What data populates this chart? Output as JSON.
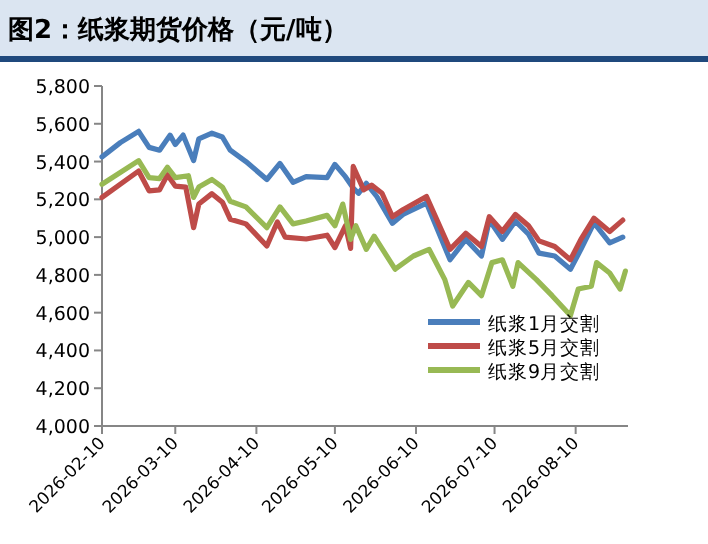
{
  "chart_data": {
    "type": "line",
    "title": "图2：纸浆期货价格（元/吨）",
    "xlim": [
      "2026-02-10",
      "2026-08-30"
    ],
    "xticks": [
      "2026-02-10",
      "2026-03-10",
      "2026-04-10",
      "2026-05-10",
      "2026-06-10",
      "2026-07-10",
      "2026-08-10"
    ],
    "ylim": [
      4000,
      5800
    ],
    "yticks": [
      {
        "value": 4000,
        "label": "4,000"
      },
      {
        "value": 4200,
        "label": "4,200"
      },
      {
        "value": 4400,
        "label": "4,400"
      },
      {
        "value": 4600,
        "label": "4,600"
      },
      {
        "value": 4800,
        "label": "4,800"
      },
      {
        "value": 5000,
        "label": "5,000"
      },
      {
        "value": 5200,
        "label": "5,200"
      },
      {
        "value": 5400,
        "label": "5,400"
      },
      {
        "value": 5600,
        "label": "5,600"
      },
      {
        "value": 5800,
        "label": "5,800"
      }
    ],
    "grid": false,
    "legend": "bottom right",
    "marker": "none",
    "line_style": "solid",
    "series": [
      {
        "name": "纸浆1月交割",
        "color": "#4a7ebb",
        "x": [
          "2026-02-10",
          "2026-02-17",
          "2026-02-24",
          "2026-02-28",
          "2026-03-04",
          "2026-03-08",
          "2026-03-10",
          "2026-03-13",
          "2026-03-17",
          "2026-03-19",
          "2026-03-24",
          "2026-03-28",
          "2026-03-31",
          "2026-04-06",
          "2026-04-14",
          "2026-04-19",
          "2026-04-24",
          "2026-04-29",
          "2026-05-07",
          "2026-05-10",
          "2026-05-14",
          "2026-05-17",
          "2026-05-19",
          "2026-05-22",
          "2026-05-26",
          "2026-06-01",
          "2026-06-05",
          "2026-06-14",
          "2026-06-23",
          "2026-06-29",
          "2026-07-05",
          "2026-07-08",
          "2026-07-13",
          "2026-07-18",
          "2026-07-23",
          "2026-07-27",
          "2026-08-02",
          "2026-08-08",
          "2026-08-12",
          "2026-08-17",
          "2026-08-23",
          "2026-08-28"
        ],
        "values": [
          5425,
          5500,
          5560,
          5475,
          5460,
          5540,
          5490,
          5540,
          5405,
          5520,
          5550,
          5530,
          5460,
          5400,
          5305,
          5390,
          5290,
          5320,
          5315,
          5385,
          5320,
          5260,
          5232,
          5285,
          5215,
          5073,
          5120,
          5180,
          4880,
          4988,
          4900,
          5090,
          4988,
          5085,
          5015,
          4915,
          4900,
          4830,
          4935,
          5075,
          4970,
          5000
        ]
      },
      {
        "name": "纸浆5月交割",
        "color": "#be4b48",
        "x": [
          "2026-02-10",
          "2026-02-24",
          "2026-02-28",
          "2026-03-04",
          "2026-03-07",
          "2026-03-10",
          "2026-03-14",
          "2026-03-17",
          "2026-03-19",
          "2026-03-24",
          "2026-03-28",
          "2026-03-31",
          "2026-04-06",
          "2026-04-14",
          "2026-04-18",
          "2026-04-21",
          "2026-04-29",
          "2026-05-07",
          "2026-05-10",
          "2026-05-14",
          "2026-05-16",
          "2026-05-17",
          "2026-05-21",
          "2026-05-24",
          "2026-05-28",
          "2026-06-01",
          "2026-06-05",
          "2026-06-14",
          "2026-06-23",
          "2026-06-29",
          "2026-07-05",
          "2026-07-08",
          "2026-07-13",
          "2026-07-18",
          "2026-07-23",
          "2026-07-27",
          "2026-08-02",
          "2026-08-08",
          "2026-08-12",
          "2026-08-17",
          "2026-08-23",
          "2026-08-28"
        ],
        "values": [
          5210,
          5350,
          5245,
          5250,
          5330,
          5270,
          5265,
          5050,
          5175,
          5230,
          5185,
          5095,
          5070,
          4953,
          5080,
          5000,
          4990,
          5010,
          4945,
          5060,
          4940,
          5374,
          5250,
          5275,
          5232,
          5108,
          5145,
          5215,
          4935,
          5020,
          4950,
          5108,
          5030,
          5120,
          5060,
          4980,
          4950,
          4880,
          4988,
          5100,
          5030,
          5090
        ]
      },
      {
        "name": "纸浆9月交割",
        "color": "#98b954",
        "x": [
          "2026-02-10",
          "2026-02-24",
          "2026-02-28",
          "2026-03-04",
          "2026-03-07",
          "2026-03-10",
          "2026-03-15",
          "2026-03-17",
          "2026-03-19",
          "2026-03-24",
          "2026-03-28",
          "2026-03-31",
          "2026-04-06",
          "2026-04-14",
          "2026-04-19",
          "2026-04-24",
          "2026-04-29",
          "2026-05-07",
          "2026-05-10",
          "2026-05-13",
          "2026-05-16",
          "2026-05-18",
          "2026-05-22",
          "2026-05-25",
          "2026-06-02",
          "2026-06-09",
          "2026-06-15",
          "2026-06-21",
          "2026-06-24",
          "2026-06-30",
          "2026-07-05",
          "2026-07-09",
          "2026-07-13",
          "2026-07-17",
          "2026-07-19",
          "2026-07-26",
          "2026-08-01",
          "2026-08-08",
          "2026-08-11",
          "2026-08-16",
          "2026-08-18",
          "2026-08-23",
          "2026-08-27",
          "2026-08-29"
        ],
        "values": [
          5280,
          5405,
          5315,
          5310,
          5370,
          5315,
          5325,
          5210,
          5265,
          5305,
          5265,
          5190,
          5160,
          5050,
          5160,
          5070,
          5085,
          5115,
          5060,
          5175,
          4988,
          5060,
          4935,
          5005,
          4830,
          4900,
          4935,
          4775,
          4635,
          4760,
          4690,
          4865,
          4880,
          4740,
          4865,
          4775,
          4690,
          4585,
          4725,
          4740,
          4865,
          4810,
          4725,
          4820
        ]
      }
    ]
  }
}
